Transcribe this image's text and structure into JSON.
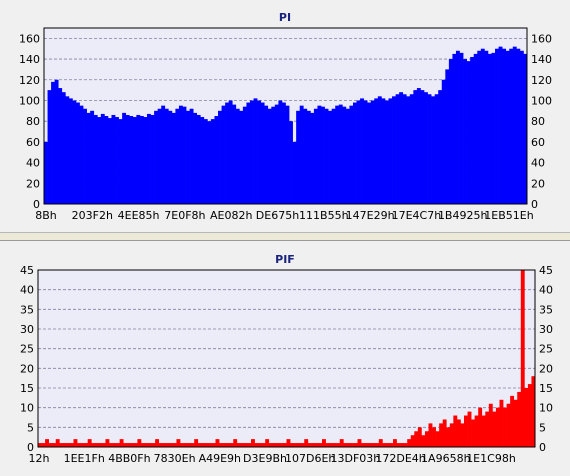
{
  "chart_data": [
    {
      "type": "area",
      "title": "PI",
      "xlabel": "",
      "ylabel": "",
      "ylim": [
        0,
        170
      ],
      "yticks": [
        0,
        20,
        40,
        60,
        80,
        100,
        120,
        140,
        160
      ],
      "x_tick_labels": [
        "8Bh",
        "203F2h",
        "4EE85h",
        "7E0F8h",
        "AE082h",
        "DE675h",
        "111B55h",
        "147E29h",
        "17E4C7h",
        "1B4925h",
        "1EB51Eh"
      ],
      "grid": true,
      "fill_color": "#0000ff",
      "series": [
        {
          "values": [
            60,
            110,
            118,
            120,
            112,
            108,
            104,
            102,
            100,
            98,
            95,
            92,
            88,
            90,
            86,
            84,
            87,
            85,
            83,
            86,
            84,
            82,
            88,
            86,
            85,
            84,
            86,
            85,
            84,
            87,
            86,
            90,
            92,
            95,
            92,
            90,
            88,
            92,
            95,
            94,
            90,
            92,
            88,
            86,
            84,
            82,
            80,
            82,
            85,
            90,
            95,
            98,
            100,
            96,
            92,
            90,
            94,
            98,
            100,
            102,
            100,
            98,
            95,
            92,
            94,
            96,
            100,
            98,
            95,
            80,
            60,
            90,
            95,
            92,
            90,
            88,
            92,
            95,
            94,
            92,
            90,
            92,
            95,
            96,
            94,
            92,
            95,
            98,
            100,
            102,
            100,
            98,
            100,
            102,
            104,
            102,
            100,
            102,
            104,
            106,
            108,
            106,
            104,
            106,
            110,
            112,
            110,
            108,
            106,
            104,
            106,
            110,
            120,
            130,
            140,
            145,
            148,
            146,
            140,
            138,
            142,
            145,
            148,
            150,
            148,
            145,
            146,
            150,
            152,
            150,
            148,
            150,
            152,
            150,
            148,
            145
          ]
        }
      ]
    },
    {
      "type": "bar",
      "title": "PIF",
      "xlabel": "",
      "ylabel": "",
      "ylim": [
        0,
        45
      ],
      "yticks": [
        0,
        5,
        10,
        15,
        20,
        25,
        30,
        35,
        40,
        45
      ],
      "x_tick_labels": [
        "12h",
        "1EE1Fh",
        "4BB0Fh",
        "7830Eh",
        "A49E9h",
        "D3E9Bh",
        "107D6Eh",
        "13DF03h",
        "172DE4h",
        "1A9658h",
        "1E1C98h"
      ],
      "grid": true,
      "fill_color": "#ff0000",
      "series": [
        {
          "values": [
            1,
            1,
            2,
            1,
            1,
            2,
            1,
            1,
            1,
            1,
            2,
            1,
            1,
            1,
            2,
            1,
            1,
            1,
            1,
            2,
            1,
            1,
            1,
            2,
            1,
            1,
            1,
            1,
            2,
            1,
            1,
            1,
            1,
            2,
            1,
            1,
            1,
            1,
            1,
            2,
            1,
            1,
            1,
            1,
            2,
            1,
            1,
            1,
            1,
            1,
            2,
            1,
            1,
            1,
            1,
            2,
            1,
            1,
            1,
            1,
            2,
            1,
            1,
            1,
            2,
            1,
            1,
            1,
            1,
            1,
            2,
            1,
            1,
            1,
            1,
            2,
            1,
            1,
            1,
            1,
            2,
            1,
            1,
            1,
            1,
            2,
            1,
            1,
            1,
            1,
            2,
            1,
            1,
            1,
            1,
            1,
            2,
            1,
            1,
            1,
            2,
            1,
            1,
            1,
            2,
            3,
            4,
            5,
            3,
            4,
            6,
            5,
            4,
            6,
            7,
            5,
            6,
            8,
            7,
            6,
            8,
            9,
            7,
            8,
            10,
            8,
            9,
            11,
            9,
            10,
            12,
            10,
            11,
            13,
            12,
            14,
            45,
            15,
            16,
            18
          ]
        }
      ]
    }
  ]
}
